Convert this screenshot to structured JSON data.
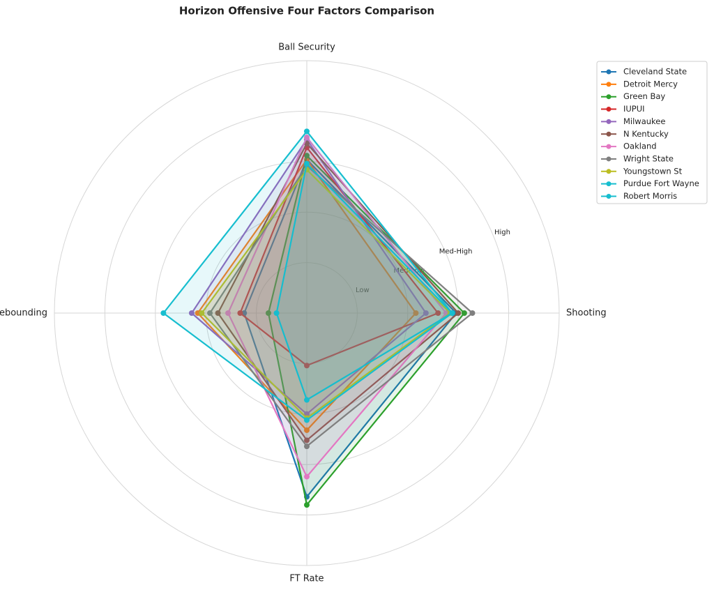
{
  "chart_data": {
    "type": "radar",
    "title": "Horizon Offensive Four Factors Comparison",
    "categories": [
      "Shooting",
      "Ball Security",
      "Off Rebounding",
      "FT Rate"
    ],
    "rlim": [
      0,
      1.25
    ],
    "rticks": [
      {
        "value": 0.25,
        "label": "Low"
      },
      {
        "value": 0.5,
        "label": "Med-Low"
      },
      {
        "value": 0.75,
        "label": "Med-High"
      },
      {
        "value": 1.0,
        "label": "High"
      }
    ],
    "grid": true,
    "legend": "upper right",
    "series": [
      {
        "name": "Cleveland State",
        "color": "#1f77b4",
        "values": [
          0.74,
          0.76,
          0.31,
          0.91
        ]
      },
      {
        "name": "Detroit Mercy",
        "color": "#ff7f0e",
        "values": [
          0.54,
          0.76,
          0.54,
          0.58
        ]
      },
      {
        "name": "Green Bay",
        "color": "#2ca02c",
        "values": [
          0.78,
          0.78,
          0.19,
          0.95
        ]
      },
      {
        "name": "IUPUI",
        "color": "#d62728",
        "values": [
          0.65,
          0.82,
          0.33,
          0.26
        ]
      },
      {
        "name": "Milwaukee",
        "color": "#9467bd",
        "values": [
          0.59,
          0.86,
          0.57,
          0.5
        ]
      },
      {
        "name": "N Kentucky",
        "color": "#8c564b",
        "values": [
          0.75,
          0.84,
          0.44,
          0.63
        ]
      },
      {
        "name": "Oakland",
        "color": "#e377c2",
        "values": [
          0.69,
          0.87,
          0.39,
          0.81
        ]
      },
      {
        "name": "Wright State",
        "color": "#7f7f7f",
        "values": [
          0.82,
          0.73,
          0.48,
          0.66
        ]
      },
      {
        "name": "Youngstown St",
        "color": "#bcbd22",
        "values": [
          0.71,
          0.71,
          0.52,
          0.52
        ]
      },
      {
        "name": "Purdue Fort Wayne",
        "color": "#17becf",
        "values": [
          0.72,
          0.74,
          0.15,
          0.43
        ]
      },
      {
        "name": "Robert Morris",
        "color": "#17becf",
        "values": [
          0.72,
          0.9,
          0.71,
          0.53
        ]
      }
    ]
  }
}
